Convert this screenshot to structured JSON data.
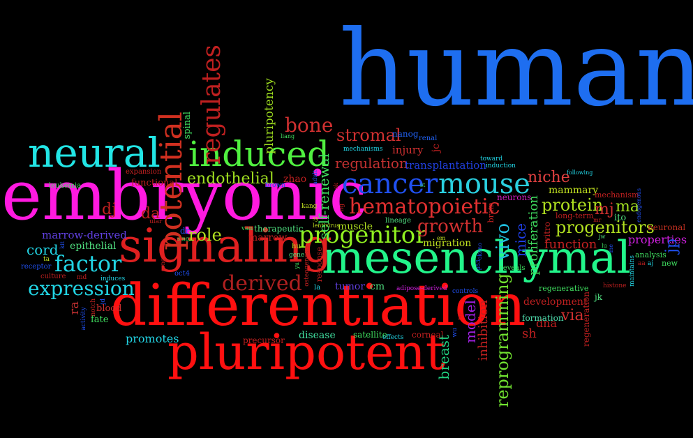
{
  "words": [
    {
      "id": "human",
      "text": "human",
      "color": "#1e6ef0"
    },
    {
      "id": "embryonic",
      "text": "embryonic",
      "color": "#ff1ae0"
    },
    {
      "id": "differentiation",
      "text": "differentiation",
      "color": "#ff1010"
    },
    {
      "id": "mesenchymal",
      "text": "mesenchymal",
      "color": "#22f58a"
    },
    {
      "id": "pluripotent",
      "text": "pluripotent",
      "color": "#ff1010"
    },
    {
      "id": "signaling",
      "text": "signaling",
      "color": "#e02020"
    },
    {
      "id": "neural",
      "text": "neural",
      "color": "#22e5e5"
    },
    {
      "id": "induced",
      "text": "induced",
      "color": "#50f040"
    },
    {
      "id": "cancer",
      "text": "cancer",
      "color": "#2050f0"
    },
    {
      "id": "mouse",
      "text": "mouse",
      "color": "#2ad0e0"
    },
    {
      "id": "progenitor",
      "text": "progenitor",
      "color": "#90f020"
    },
    {
      "id": "hematopoietic",
      "text": "hematopoietic",
      "color": "#e03030"
    },
    {
      "id": "factor",
      "text": "factor",
      "color": "#22d5e5"
    },
    {
      "id": "derived",
      "text": "derived",
      "color": "#b02020"
    },
    {
      "id": "expression",
      "text": "expression",
      "color": "#22d5e5"
    },
    {
      "id": "potential",
      "text": "potential",
      "color": "#d03020"
    },
    {
      "id": "regulates",
      "text": "regulates",
      "color": "#c02020"
    },
    {
      "id": "bone",
      "text": "bone",
      "color": "#d03030"
    },
    {
      "id": "endothelial",
      "text": "endothelial",
      "color": "#a0e020"
    },
    {
      "id": "growth",
      "text": "growth",
      "color": "#d03030"
    },
    {
      "id": "progenitors",
      "text": "progenitors",
      "color": "#b0e020"
    },
    {
      "id": "stromal",
      "text": "stromal",
      "color": "#d03030"
    },
    {
      "id": "regulation",
      "text": "regulation",
      "color": "#c03030"
    },
    {
      "id": "reprogramming",
      "text": "reprogramming",
      "color": "#70e030"
    },
    {
      "id": "self-renewal",
      "text": "self-renewal",
      "color": "#40e060"
    },
    {
      "id": "vivo",
      "text": "vivo",
      "color": "#20c0e0"
    },
    {
      "id": "protein",
      "text": "protein",
      "color": "#b0e020"
    },
    {
      "id": "niche",
      "text": "niche",
      "color": "#e04040"
    },
    {
      "id": "model",
      "text": "model",
      "color": "#a020e0"
    },
    {
      "id": "mice",
      "text": "mice",
      "color": "#2040f0"
    },
    {
      "id": "proliferation",
      "text": "proliferation",
      "color": "#40e060"
    },
    {
      "id": "inhibition",
      "text": "inhibition",
      "color": "#c02020"
    },
    {
      "id": "breast",
      "text": "breast",
      "color": "#20d080"
    },
    {
      "id": "role",
      "text": "role",
      "color": "#b0e020"
    },
    {
      "id": "cord",
      "text": "cord",
      "color": "#22d5e5"
    },
    {
      "id": "ra",
      "text": "ra",
      "color": "#c03030"
    },
    {
      "id": "da",
      "text": "da",
      "color": "#c02020"
    },
    {
      "id": "dj",
      "text": "dj",
      "color": "#c02020"
    },
    {
      "id": "mj",
      "text": "mj",
      "color": "#d03030"
    },
    {
      "id": "ma",
      "text": "ma",
      "color": "#a0e020"
    },
    {
      "id": "jp",
      "text": "jp",
      "color": "#2050f0"
    },
    {
      "id": "via",
      "text": "via",
      "color": "#d03030"
    },
    {
      "id": "sh",
      "text": "sh",
      "color": "#c02020"
    },
    {
      "id": "pluripotency",
      "text": "pluripotency",
      "color": "#a0e020"
    },
    {
      "id": "function",
      "text": "function",
      "color": "#c02020"
    },
    {
      "id": "properties",
      "text": "properties",
      "color": "#d020e0"
    },
    {
      "id": "marrow-derived",
      "text": "marrow-derived",
      "color": "#6040e0"
    },
    {
      "id": "epithelial",
      "text": "epithelial",
      "color": "#50e080"
    },
    {
      "id": "promotes",
      "text": "promotes",
      "color": "#22d5e5"
    },
    {
      "id": "transplantation",
      "text": "transplantation",
      "color": "#2040e0"
    },
    {
      "id": "injury",
      "text": "injury",
      "color": "#d03030"
    },
    {
      "id": "muscle",
      "text": "muscle",
      "color": "#b0e020"
    },
    {
      "id": "migration",
      "text": "migration",
      "color": "#c0e020"
    },
    {
      "id": "mammary",
      "text": "mammary",
      "color": "#c0e020"
    },
    {
      "id": "development",
      "text": "development",
      "color": "#c02020"
    },
    {
      "id": "functional",
      "text": "functional",
      "color": "#c02020"
    },
    {
      "id": "zhao",
      "text": "zhao",
      "color": "#c02020"
    },
    {
      "id": "disease",
      "text": "disease",
      "color": "#40e0a0"
    },
    {
      "id": "blood",
      "text": "blood",
      "color": "#d03030"
    },
    {
      "id": "fate",
      "text": "fate",
      "color": "#40e060"
    },
    {
      "id": "precursor",
      "text": "precursor",
      "color": "#c02020"
    },
    {
      "id": "satellite",
      "text": "satellite",
      "color": "#40e060"
    },
    {
      "id": "corneal",
      "text": "corneal",
      "color": "#c02020"
    },
    {
      "id": "regeneration",
      "text": "regeneration",
      "color": "#c02020"
    },
    {
      "id": "dna",
      "text": "dna",
      "color": "#c02020"
    },
    {
      "id": "formation",
      "text": "formation",
      "color": "#50e0b0"
    },
    {
      "id": "analysis",
      "text": "analysis",
      "color": "#40e060"
    },
    {
      "id": "regenerative",
      "text": "regenerative",
      "color": "#40e060"
    },
    {
      "id": "neuronal",
      "text": "neuronal",
      "color": "#c03020"
    },
    {
      "id": "neurons",
      "text": "neurons",
      "color": "#d020c0"
    },
    {
      "id": "spinal",
      "text": "spinal",
      "color": "#40e060"
    },
    {
      "id": "marrow",
      "text": "marrow",
      "color": "#c02020"
    },
    {
      "id": "therapeutic",
      "text": "therapeutic",
      "color": "#50e080"
    },
    {
      "id": "nanog",
      "text": "nanog",
      "color": "#2060f0"
    },
    {
      "id": "renal",
      "text": "renal",
      "color": "#2060f0"
    },
    {
      "id": "jc",
      "text": "jc",
      "color": "#c02020"
    },
    {
      "id": "tumor",
      "text": "tumor",
      "color": "#6040e0"
    },
    {
      "id": "cm",
      "text": "cm",
      "color": "#50e080"
    },
    {
      "id": "jk",
      "text": "jk",
      "color": "#50e080"
    },
    {
      "id": "ito",
      "text": "ito",
      "color": "#50e080"
    },
    {
      "id": "new",
      "text": "new",
      "color": "#40e060"
    },
    {
      "id": "long-term",
      "text": "long-term",
      "color": "#c02020"
    },
    {
      "id": "mechanism",
      "text": "mechanism",
      "color": "#c02020"
    },
    {
      "id": "epithelial2",
      "text": "receptor",
      "color": "#2050f0"
    },
    {
      "id": "culture",
      "text": "culture",
      "color": "#c02020"
    },
    {
      "id": "induces",
      "text": "induces",
      "color": "#22d5e5"
    },
    {
      "id": "oct4",
      "text": "oct4",
      "color": "#2050f0"
    },
    {
      "id": "dr",
      "text": "dr",
      "color": "#2050f0"
    },
    {
      "id": "lineage",
      "text": "lineage",
      "color": "#50e080"
    },
    {
      "id": "vitro",
      "text": "vitro",
      "color": "#c02020"
    },
    {
      "id": "leukemia",
      "text": "leukemia",
      "color": "#40e060"
    },
    {
      "id": "expansion",
      "text": "expansion",
      "color": "#c02020"
    },
    {
      "id": "brown",
      "text": "brown",
      "color": "#2050f0"
    },
    {
      "id": "kang",
      "text": "kang",
      "color": "#c0e020"
    },
    {
      "id": "mechanisms",
      "text": "mechanisms",
      "color": "#22d5e5"
    },
    {
      "id": "toward",
      "text": "toward",
      "color": "#22d5e5"
    },
    {
      "id": "induction",
      "text": "induction",
      "color": "#22d5e5"
    },
    {
      "id": "following",
      "text": "following",
      "color": "#22d5e5"
    },
    {
      "id": "reveals",
      "text": "reveals",
      "color": "#40e060"
    },
    {
      "id": "gene",
      "text": "gene",
      "color": "#50e080"
    },
    {
      "id": "hu",
      "text": "hu",
      "color": "#c0e020"
    },
    {
      "id": "la",
      "text": "la",
      "color": "#22d5e5"
    },
    {
      "id": "controls",
      "text": "controls",
      "color": "#2050f0"
    },
    {
      "id": "adipose-derived",
      "text": "adipose-derived",
      "color": "#d020e0"
    },
    {
      "id": "effects",
      "text": "effects",
      "color": "#22d5e5"
    },
    {
      "id": "activity",
      "text": "activity",
      "color": "#2050f0"
    },
    {
      "id": "notch",
      "text": "notch",
      "color": "#c02020"
    },
    {
      "id": "jd",
      "text": "jd",
      "color": "#2050f0"
    },
    {
      "id": "md",
      "text": "md",
      "color": "#c02020"
    },
    {
      "id": "ta",
      "text": "ta",
      "color": "#c0e020"
    },
    {
      "id": "histone",
      "text": "histone",
      "color": "#c02020"
    },
    {
      "id": "aa",
      "text": "aa",
      "color": "#c02020"
    },
    {
      "id": "aj",
      "text": "aj",
      "color": "#22d5e5"
    },
    {
      "id": "maintains",
      "text": "maintains",
      "color": "#22d5e5"
    },
    {
      "id": "liang",
      "text": "liang",
      "color": "#40e060"
    },
    {
      "id": "st",
      "text": "st",
      "color": "#40e060"
    },
    {
      "id": "em",
      "text": "em",
      "color": "#c0e020"
    },
    {
      "id": "wu",
      "text": "wu",
      "color": "#2050f0"
    },
    {
      "id": "p53",
      "text": "p53",
      "color": "#2050f0"
    },
    {
      "id": "sing",
      "text": "sing",
      "color": "#40e060"
    },
    {
      "id": "van",
      "text": "van",
      "color": "#40e060"
    },
    {
      "id": "ular",
      "text": "ular",
      "color": "#c02020"
    },
    {
      "id": "jw",
      "text": "jw",
      "color": "#50e080"
    },
    {
      "id": "lu",
      "text": "lu",
      "color": "#40e060"
    },
    {
      "id": "mr",
      "text": "mr",
      "color": "#c02020"
    },
    {
      "id": "yu",
      "text": "yu",
      "color": "#40e060"
    },
    {
      "id": "song",
      "text": "song",
      "color": "#c02020"
    },
    {
      "id": "osteogenesis",
      "text": "osteogenesis",
      "color": "#c02020"
    },
    {
      "id": "response",
      "text": "response",
      "color": "#c02020"
    },
    {
      "id": "ng",
      "text": "ng",
      "color": "#c0e020"
    },
    {
      "id": "sk",
      "text": "sk",
      "color": "#c0e020"
    },
    {
      "id": "adult",
      "text": "adult",
      "color": "#c02020"
    },
    {
      "id": "mp",
      "text": "mp",
      "color": "#c02020"
    },
    {
      "id": "okano",
      "text": "okano",
      "color": "#2050f0"
    },
    {
      "id": "lentivirus",
      "text": "lentivirus",
      "color": "#c02020"
    },
    {
      "id": "sy",
      "text": "sy",
      "color": "#2050f0"
    },
    {
      "id": "gk",
      "text": "gk",
      "color": "#40e060"
    },
    {
      "id": "brain",
      "text": "brain",
      "color": "#c02020"
    },
    {
      "id": "endogenous",
      "text": "endogenous",
      "color": "#2050f0"
    },
    {
      "id": "me",
      "text": "me",
      "color": "#2050f0"
    },
    {
      "id": "kit",
      "text": "kit",
      "color": "#2050f0"
    }
  ]
}
